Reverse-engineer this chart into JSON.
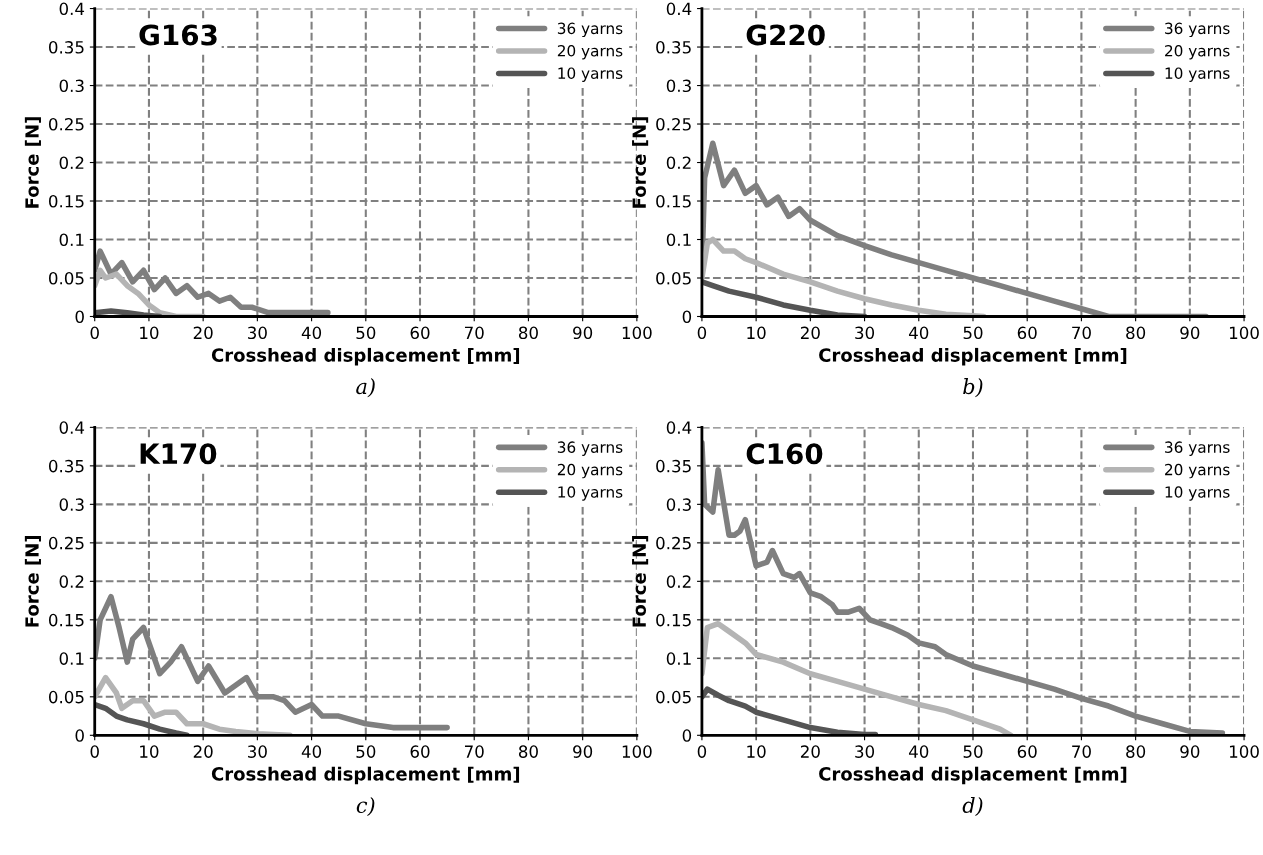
{
  "chart_data": [
    {
      "type": "line",
      "title": "G163",
      "xlabel": "Crosshead displacement [mm]",
      "ylabel": "Force [N]",
      "annotations": [
        "a)"
      ],
      "xlim": [
        0,
        100
      ],
      "ylim": [
        0,
        0.4
      ],
      "xticks": [
        0,
        10,
        20,
        30,
        40,
        50,
        60,
        70,
        80,
        90,
        100
      ],
      "yticks": [
        0,
        0.05,
        0.1,
        0.15,
        0.2,
        0.25,
        0.3,
        0.35,
        0.4
      ],
      "grid": true,
      "legend": "top right",
      "line_style": "solid",
      "series": [
        {
          "name": "36 yarns",
          "color": "#7f7f7f",
          "x": [
            0,
            1,
            3,
            5,
            7,
            9,
            11,
            13,
            15,
            17,
            19,
            21,
            23,
            25,
            27,
            29,
            32,
            35,
            38,
            43
          ],
          "values": [
            0.06,
            0.085,
            0.055,
            0.07,
            0.045,
            0.06,
            0.035,
            0.05,
            0.03,
            0.04,
            0.025,
            0.03,
            0.02,
            0.025,
            0.012,
            0.012,
            0.005,
            0.005,
            0.005,
            0.005
          ]
        },
        {
          "name": "20 yarns",
          "color": "#b4b4b4",
          "x": [
            0,
            1,
            2,
            4,
            6,
            8,
            10,
            12,
            15,
            20
          ],
          "values": [
            0.04,
            0.06,
            0.05,
            0.055,
            0.04,
            0.03,
            0.015,
            0.005,
            0.0,
            0.0
          ]
        },
        {
          "name": "10 yarns",
          "color": "#555555",
          "x": [
            0,
            3,
            6,
            9,
            12
          ],
          "values": [
            0.005,
            0.007,
            0.005,
            0.002,
            0.0
          ]
        }
      ]
    },
    {
      "type": "line",
      "title": "G220",
      "xlabel": "Crosshead displacement [mm]",
      "ylabel": "Force [N]",
      "annotations": [
        "b)"
      ],
      "xlim": [
        0,
        100
      ],
      "ylim": [
        0,
        0.4
      ],
      "xticks": [
        0,
        10,
        20,
        30,
        40,
        50,
        60,
        70,
        80,
        90,
        100
      ],
      "yticks": [
        0,
        0.05,
        0.1,
        0.15,
        0.2,
        0.25,
        0.3,
        0.35,
        0.4
      ],
      "grid": true,
      "legend": "top right",
      "line_style": "solid",
      "series": [
        {
          "name": "36 yarns",
          "color": "#7f7f7f",
          "x": [
            0,
            0.5,
            2,
            4,
            6,
            8,
            10,
            12,
            14,
            16,
            18,
            20,
            25,
            30,
            35,
            40,
            45,
            50,
            55,
            60,
            65,
            70,
            75,
            93
          ],
          "values": [
            0.06,
            0.18,
            0.225,
            0.17,
            0.19,
            0.16,
            0.17,
            0.145,
            0.155,
            0.13,
            0.14,
            0.125,
            0.105,
            0.092,
            0.08,
            0.07,
            0.06,
            0.05,
            0.04,
            0.03,
            0.02,
            0.01,
            0.0,
            0.0
          ]
        },
        {
          "name": "20 yarns",
          "color": "#b4b4b4",
          "x": [
            0,
            1,
            2,
            4,
            6,
            8,
            10,
            15,
            20,
            25,
            30,
            35,
            40,
            45,
            50,
            52
          ],
          "values": [
            0.05,
            0.095,
            0.1,
            0.085,
            0.085,
            0.075,
            0.07,
            0.055,
            0.045,
            0.033,
            0.023,
            0.015,
            0.008,
            0.003,
            0.001,
            0.0
          ]
        },
        {
          "name": "10 yarns",
          "color": "#555555",
          "x": [
            0,
            2,
            5,
            10,
            15,
            20,
            25,
            30
          ],
          "values": [
            0.045,
            0.04,
            0.033,
            0.025,
            0.015,
            0.008,
            0.002,
            0.0
          ]
        }
      ]
    },
    {
      "type": "line",
      "title": "K170",
      "xlabel": "Crosshead displacement [mm]",
      "ylabel": "Force [N]",
      "annotations": [
        "c)"
      ],
      "xlim": [
        0,
        100
      ],
      "ylim": [
        0,
        0.4
      ],
      "xticks": [
        0,
        10,
        20,
        30,
        40,
        50,
        60,
        70,
        80,
        90,
        100
      ],
      "yticks": [
        0,
        0.05,
        0.1,
        0.15,
        0.2,
        0.25,
        0.3,
        0.35,
        0.4
      ],
      "grid": true,
      "legend": "top right",
      "line_style": "solid",
      "series": [
        {
          "name": "36 yarns",
          "color": "#7f7f7f",
          "x": [
            0,
            1,
            3,
            4.5,
            6,
            7,
            9,
            12,
            14,
            16,
            19,
            21,
            24,
            26,
            28,
            30,
            33,
            35,
            37,
            40,
            42,
            45,
            50,
            55,
            60,
            65
          ],
          "values": [
            0.1,
            0.15,
            0.18,
            0.14,
            0.095,
            0.125,
            0.14,
            0.08,
            0.095,
            0.115,
            0.07,
            0.09,
            0.055,
            0.065,
            0.075,
            0.05,
            0.05,
            0.045,
            0.03,
            0.04,
            0.025,
            0.025,
            0.015,
            0.01,
            0.01,
            0.01
          ]
        },
        {
          "name": "20 yarns",
          "color": "#b4b4b4",
          "x": [
            0,
            2,
            4,
            5,
            7,
            9,
            11,
            13,
            15,
            17,
            20,
            23,
            26,
            30,
            36
          ],
          "values": [
            0.05,
            0.075,
            0.055,
            0.035,
            0.045,
            0.045,
            0.025,
            0.03,
            0.03,
            0.015,
            0.015,
            0.008,
            0.005,
            0.002,
            0.0
          ]
        },
        {
          "name": "10 yarns",
          "color": "#555555",
          "x": [
            0,
            2,
            4,
            6,
            9,
            12,
            15,
            17
          ],
          "values": [
            0.04,
            0.035,
            0.025,
            0.02,
            0.015,
            0.008,
            0.003,
            0.0
          ]
        }
      ]
    },
    {
      "type": "line",
      "title": "C160",
      "xlabel": "Crosshead displacement [mm]",
      "ylabel": "Force [N]",
      "annotations": [
        "d)"
      ],
      "xlim": [
        0,
        100
      ],
      "ylim": [
        0,
        0.4
      ],
      "xticks": [
        0,
        10,
        20,
        30,
        40,
        50,
        60,
        70,
        80,
        90,
        100
      ],
      "yticks": [
        0,
        0.05,
        0.1,
        0.15,
        0.2,
        0.25,
        0.3,
        0.35,
        0.4
      ],
      "grid": true,
      "legend": "top right",
      "line_style": "solid",
      "series": [
        {
          "name": "36 yarns",
          "color": "#7f7f7f",
          "x": [
            0,
            0.5,
            2,
            3,
            5,
            6,
            7,
            8,
            9,
            10,
            12,
            13,
            15,
            17,
            18,
            20,
            22,
            24,
            25,
            27,
            29,
            31,
            33,
            35,
            38,
            40,
            43,
            45,
            50,
            55,
            60,
            65,
            70,
            75,
            80,
            85,
            90,
            96
          ],
          "values": [
            0.38,
            0.3,
            0.29,
            0.345,
            0.26,
            0.26,
            0.265,
            0.28,
            0.25,
            0.22,
            0.225,
            0.24,
            0.21,
            0.205,
            0.21,
            0.185,
            0.18,
            0.17,
            0.16,
            0.16,
            0.165,
            0.15,
            0.145,
            0.14,
            0.13,
            0.12,
            0.115,
            0.105,
            0.09,
            0.08,
            0.07,
            0.06,
            0.048,
            0.038,
            0.025,
            0.015,
            0.005,
            0.003
          ]
        },
        {
          "name": "20 yarns",
          "color": "#b4b4b4",
          "x": [
            0,
            1,
            3,
            5,
            8,
            10,
            15,
            20,
            25,
            30,
            35,
            40,
            45,
            50,
            55,
            57
          ],
          "values": [
            0.08,
            0.14,
            0.145,
            0.135,
            0.12,
            0.105,
            0.095,
            0.08,
            0.07,
            0.06,
            0.05,
            0.04,
            0.032,
            0.02,
            0.008,
            0.0
          ]
        },
        {
          "name": "10 yarns",
          "color": "#555555",
          "x": [
            0,
            1,
            3,
            5,
            8,
            10,
            15,
            20,
            25,
            30,
            32
          ],
          "values": [
            0.05,
            0.06,
            0.052,
            0.045,
            0.038,
            0.03,
            0.02,
            0.01,
            0.004,
            0.001,
            0.001
          ]
        }
      ]
    }
  ]
}
